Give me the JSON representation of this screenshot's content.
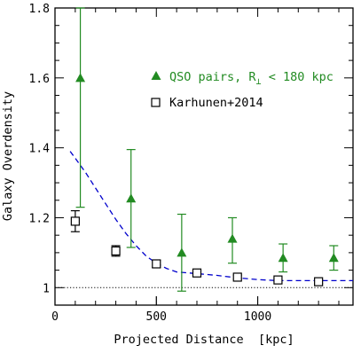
{
  "chart_data": {
    "type": "scatter",
    "xlabel": "Projected Distance  [kpc]",
    "ylabel": "Galaxy Overdensity",
    "xlim": [
      0,
      1470
    ],
    "ylim": [
      0.95,
      1.8
    ],
    "x_ticks": [
      0,
      500,
      1000
    ],
    "x_tick_labels": [
      "0",
      "500",
      "1000"
    ],
    "y_ticks": [
      1,
      1.2,
      1.4,
      1.6,
      1.8
    ],
    "y_tick_labels": [
      "1",
      "1.2",
      "1.4",
      "1.6",
      "1.8"
    ],
    "grid": false,
    "legend_position": "upper-right",
    "series": [
      {
        "name": "QSO pairs, R",
        "name_subscript": "⊥",
        "name_suffix": " < 180 kpc",
        "marker": "filled-triangle",
        "color": "#228B22",
        "points": [
          {
            "x": 125,
            "y": 1.6,
            "ylo": 1.23,
            "yhi": 1.8
          },
          {
            "x": 375,
            "y": 1.255,
            "ylo": 1.115,
            "yhi": 1.395
          },
          {
            "x": 625,
            "y": 1.1,
            "ylo": 0.99,
            "yhi": 1.21
          },
          {
            "x": 875,
            "y": 1.14,
            "ylo": 1.07,
            "yhi": 1.2
          },
          {
            "x": 1125,
            "y": 1.085,
            "ylo": 1.045,
            "yhi": 1.125
          },
          {
            "x": 1375,
            "y": 1.085,
            "ylo": 1.05,
            "yhi": 1.12
          }
        ]
      },
      {
        "name": "Karhunen+2014",
        "marker": "open-square",
        "color": "#000000",
        "points": [
          {
            "x": 100,
            "y": 1.19,
            "ylo": 1.16,
            "yhi": 1.22
          },
          {
            "x": 300,
            "y": 1.105,
            "ylo": 1.09,
            "yhi": 1.12
          },
          {
            "x": 500,
            "y": 1.068,
            "ylo": 1.058,
            "yhi": 1.078
          },
          {
            "x": 700,
            "y": 1.042,
            "ylo": 1.034,
            "yhi": 1.05
          },
          {
            "x": 900,
            "y": 1.03,
            "ylo": 1.024,
            "yhi": 1.036
          },
          {
            "x": 1100,
            "y": 1.022,
            "ylo": 1.017,
            "yhi": 1.027
          },
          {
            "x": 1300,
            "y": 1.017,
            "ylo": 1.012,
            "yhi": 1.022
          }
        ]
      }
    ],
    "model_curve": {
      "style": "dashed",
      "color": "#0000CC",
      "x": [
        75,
        100,
        150,
        200,
        250,
        300,
        350,
        400,
        450,
        500,
        550,
        600,
        700,
        800,
        900,
        1000,
        1100,
        1200,
        1300,
        1470
      ],
      "y": [
        1.39,
        1.37,
        1.33,
        1.285,
        1.24,
        1.195,
        1.155,
        1.12,
        1.09,
        1.07,
        1.055,
        1.045,
        1.04,
        1.035,
        1.028,
        1.023,
        1.02,
        1.02,
        1.02,
        1.02
      ]
    },
    "reference_line": {
      "y": 1.0,
      "style": "dotted",
      "color": "#000000"
    }
  }
}
